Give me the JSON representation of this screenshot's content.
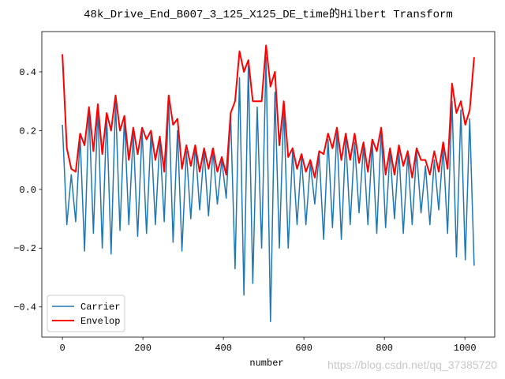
{
  "chart_data": {
    "type": "line",
    "title": "48k_Drive_End_B007_3_125_X125_DE_time的Hilbert Transform",
    "x_label": "number",
    "watermark": "https://blog.csdn.net/qq_37385720",
    "x": [
      0,
      11,
      22,
      33,
      44,
      55,
      66,
      77,
      88,
      99,
      110,
      121,
      132,
      143,
      154,
      165,
      176,
      187,
      198,
      209,
      220,
      231,
      242,
      253,
      264,
      275,
      286,
      297,
      308,
      319,
      330,
      341,
      352,
      363,
      374,
      385,
      396,
      407,
      418,
      429,
      440,
      451,
      462,
      473,
      484,
      495,
      506,
      517,
      528,
      539,
      550,
      561,
      572,
      583,
      594,
      605,
      616,
      627,
      638,
      649,
      660,
      671,
      682,
      693,
      704,
      715,
      726,
      737,
      748,
      759,
      770,
      781,
      792,
      803,
      814,
      825,
      836,
      847,
      858,
      869,
      880,
      891,
      902,
      913,
      924,
      935,
      946,
      957,
      968,
      979,
      990,
      1001,
      1012,
      1023
    ],
    "series": [
      {
        "name": "Carrier",
        "color": "#1f77b4",
        "values": [
          0.22,
          -0.12,
          0.05,
          -0.11,
          0.18,
          -0.21,
          0.27,
          -0.15,
          0.28,
          -0.2,
          0.25,
          -0.22,
          0.3,
          -0.14,
          0.24,
          -0.12,
          0.19,
          -0.16,
          0.2,
          -0.15,
          0.19,
          -0.12,
          0.17,
          -0.11,
          0.3,
          -0.18,
          0.2,
          -0.21,
          0.13,
          -0.1,
          0.15,
          -0.07,
          0.13,
          -0.09,
          0.13,
          -0.05,
          0.1,
          -0.03,
          0.25,
          -0.27,
          0.38,
          -0.36,
          0.42,
          -0.32,
          0.28,
          -0.2,
          0.45,
          -0.45,
          0.33,
          -0.2,
          0.28,
          -0.2,
          0.13,
          -0.12,
          0.11,
          -0.12,
          0.09,
          -0.05,
          0.12,
          -0.17,
          0.17,
          -0.13,
          0.2,
          -0.17,
          0.17,
          -0.12,
          0.16,
          -0.08,
          0.15,
          -0.12,
          0.16,
          -0.15,
          0.2,
          -0.13,
          0.13,
          -0.1,
          0.13,
          -0.15,
          0.12,
          -0.12,
          0.13,
          -0.08,
          0.08,
          -0.12,
          0.1,
          -0.07,
          0.14,
          -0.15,
          0.3,
          -0.23,
          0.27,
          -0.24,
          0.24,
          -0.26
        ]
      },
      {
        "name": "Envelop",
        "color": "#ff0000",
        "values": [
          0.46,
          0.14,
          0.07,
          0.06,
          0.19,
          0.15,
          0.28,
          0.13,
          0.29,
          0.12,
          0.26,
          0.2,
          0.32,
          0.2,
          0.25,
          0.1,
          0.21,
          0.12,
          0.21,
          0.17,
          0.2,
          0.1,
          0.18,
          0.06,
          0.32,
          0.22,
          0.24,
          0.07,
          0.15,
          0.08,
          0.15,
          0.06,
          0.14,
          0.07,
          0.14,
          0.06,
          0.11,
          0.05,
          0.26,
          0.3,
          0.47,
          0.4,
          0.44,
          0.3,
          0.3,
          0.3,
          0.49,
          0.35,
          0.4,
          0.15,
          0.3,
          0.11,
          0.14,
          0.07,
          0.12,
          0.06,
          0.1,
          0.04,
          0.13,
          0.12,
          0.19,
          0.14,
          0.21,
          0.1,
          0.19,
          0.1,
          0.19,
          0.09,
          0.16,
          0.06,
          0.17,
          0.13,
          0.21,
          0.05,
          0.14,
          0.05,
          0.15,
          0.08,
          0.13,
          0.04,
          0.14,
          0.1,
          0.1,
          0.05,
          0.13,
          0.06,
          0.16,
          0.07,
          0.36,
          0.26,
          0.3,
          0.22,
          0.27,
          0.45
        ]
      }
    ],
    "xlim": [
      -51.15,
      1074.15
    ],
    "ylim": [
      -0.503,
      0.537
    ],
    "xticks": [
      0,
      200,
      400,
      600,
      800,
      1000
    ],
    "yticks": [
      {
        "value": -0.4,
        "label": "−0.4"
      },
      {
        "value": -0.2,
        "label": "−0.2"
      },
      {
        "value": 0,
        "label": "0.0"
      },
      0.2,
      0.4
    ],
    "legend": "lower left",
    "grid": false
  }
}
